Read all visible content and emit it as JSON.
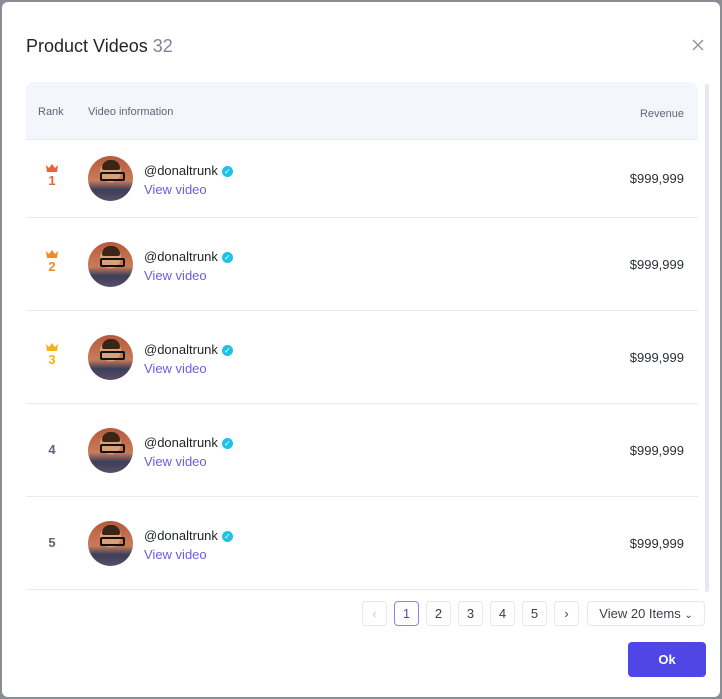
{
  "dialog": {
    "title": "Product Videos",
    "count": "32"
  },
  "table": {
    "headers": {
      "rank": "Rank",
      "info": "Video information",
      "revenue": "Revenue"
    },
    "rows": [
      {
        "rank": "1",
        "crown": true,
        "rank_color": "#f0603a",
        "handle": "@donaltrunk",
        "link": "View video",
        "revenue": "$999,999"
      },
      {
        "rank": "2",
        "crown": true,
        "rank_color": "#f28a22",
        "handle": "@donaltrunk",
        "link": "View video",
        "revenue": "$999,999"
      },
      {
        "rank": "3",
        "crown": true,
        "rank_color": "#f5b318",
        "handle": "@donaltrunk",
        "link": "View video",
        "revenue": "$999,999"
      },
      {
        "rank": "4",
        "crown": false,
        "rank_color": "#5d6478",
        "handle": "@donaltrunk",
        "link": "View video",
        "revenue": "$999,999"
      },
      {
        "rank": "5",
        "crown": false,
        "rank_color": "#5d6478",
        "handle": "@donaltrunk",
        "link": "View video",
        "revenue": "$999,999"
      }
    ]
  },
  "pagination": {
    "pages": [
      "1",
      "2",
      "3",
      "4",
      "5"
    ],
    "current": "1",
    "page_size": "View 20 Items"
  },
  "footer": {
    "ok": "Ok"
  },
  "colors": {
    "accent": "#5046e5",
    "verified": "#1fc1e6",
    "link": "#6b5ce7"
  }
}
